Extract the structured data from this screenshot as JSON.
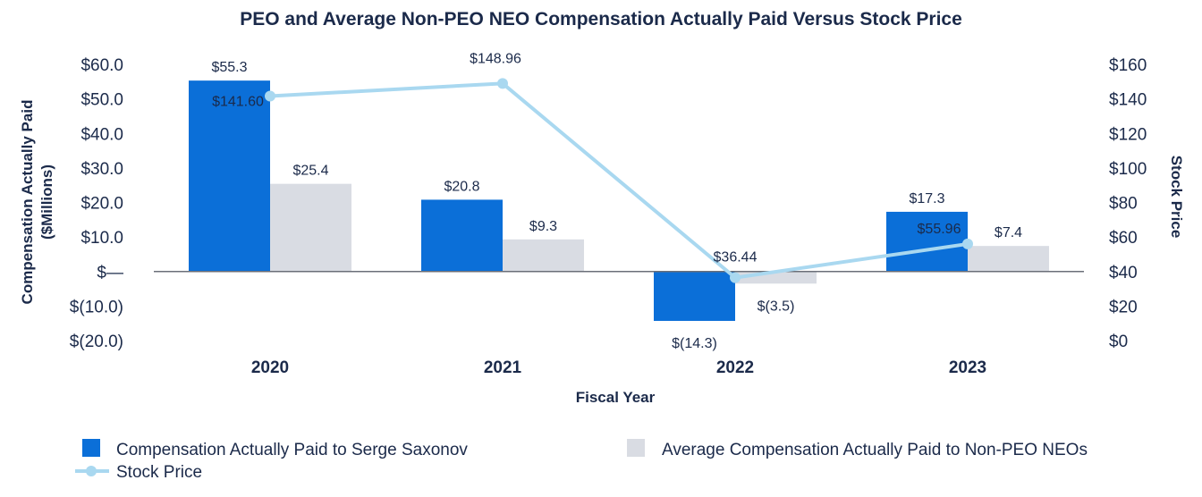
{
  "chart_data": {
    "type": "bar",
    "title": "PEO and Average Non-PEO NEO Compensation Actually Paid Versus Stock Price",
    "categories": [
      "2020",
      "2021",
      "2022",
      "2023"
    ],
    "xlabel": "Fiscal Year",
    "ylabel_line1": "Compensation Actually Paid",
    "ylabel_line2": "($Millions)",
    "y2label": "Stock Price",
    "ylim": [
      -20,
      60
    ],
    "y2lim": [
      0,
      160
    ],
    "y_ticks": [
      "$60.0",
      "$50.0",
      "$40.0",
      "$30.0",
      "$20.0",
      "$10.0",
      "$—",
      "$(10.0)",
      "$(20.0)"
    ],
    "y_tick_values": [
      60,
      50,
      40,
      30,
      20,
      10,
      0,
      -10,
      -20
    ],
    "y2_ticks": [
      "$160",
      "$140",
      "$120",
      "$100",
      "$80",
      "$60",
      "$40",
      "$20",
      "$0"
    ],
    "y2_tick_values": [
      160,
      140,
      120,
      100,
      80,
      60,
      40,
      20,
      0
    ],
    "series": [
      {
        "name": "Compensation Actually Paid to Serge Saxonov",
        "kind": "bar",
        "axis": "left",
        "color": "#0b6fd8",
        "values": [
          55.3,
          20.8,
          -14.3,
          17.3
        ],
        "labels": [
          "$55.3",
          "$20.8",
          "$(14.3)",
          "$17.3"
        ]
      },
      {
        "name": "Average Compensation Actually Paid to Non-PEO NEOs",
        "kind": "bar",
        "axis": "left",
        "color": "#d9dce3",
        "values": [
          25.4,
          9.3,
          -3.5,
          7.4
        ],
        "labels": [
          "$25.4",
          "$9.3",
          "$(3.5)",
          "$7.4"
        ]
      },
      {
        "name": "Stock Price",
        "kind": "line",
        "axis": "right",
        "color": "#a9d8f0",
        "values": [
          141.6,
          148.96,
          36.44,
          55.96
        ],
        "labels": [
          "$141.60",
          "$148.96",
          "$36.44",
          "$55.96"
        ]
      }
    ]
  }
}
